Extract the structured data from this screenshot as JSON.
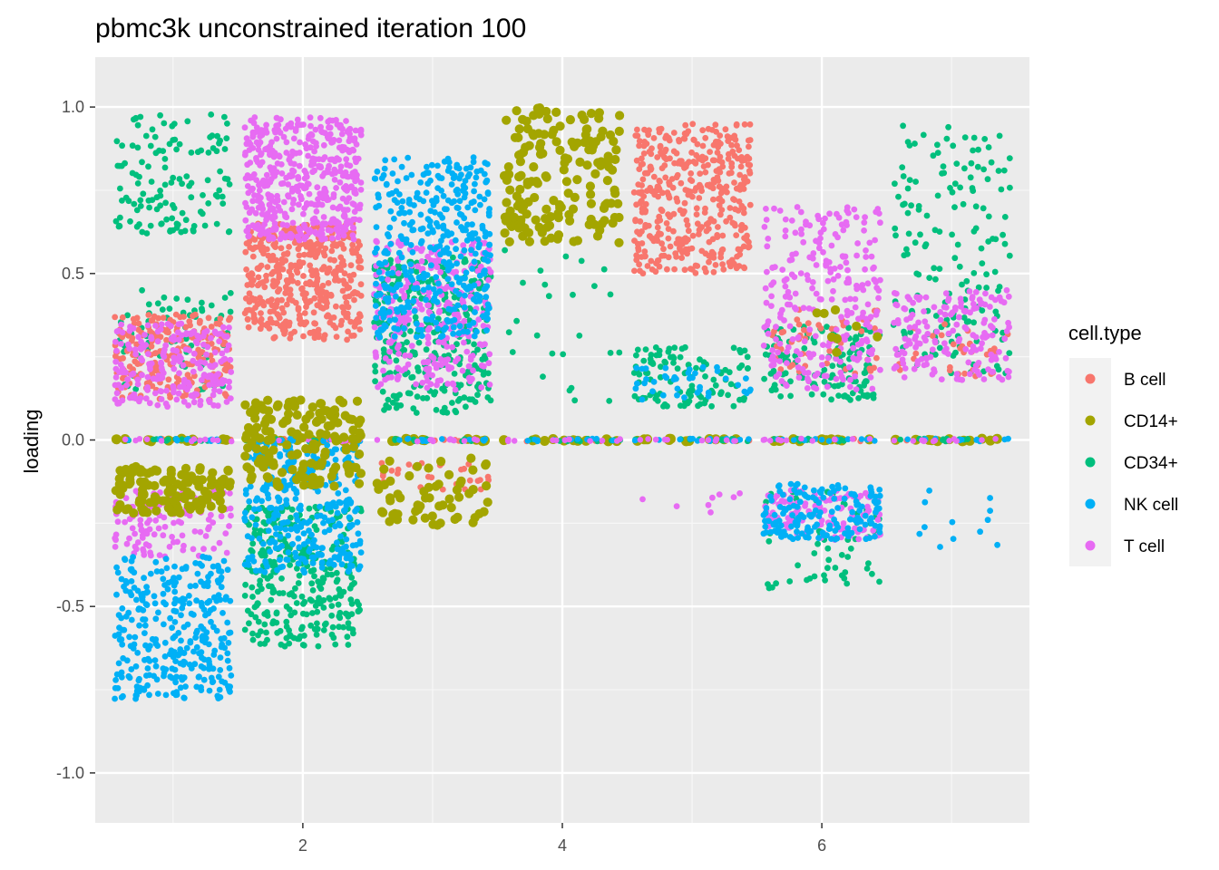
{
  "chart_data": {
    "type": "scatter",
    "title": "pbmc3k unconstrained iteration 100",
    "xlabel": "",
    "ylabel": "loading",
    "xlim": [
      0.4,
      7.6
    ],
    "ylim": [
      -1.15,
      1.15
    ],
    "x_ticks": [
      {
        "value": 2,
        "label": "2"
      },
      {
        "value": 4,
        "label": "4"
      },
      {
        "value": 6,
        "label": "6"
      }
    ],
    "x_minor_ticks": [
      1,
      3,
      5,
      7
    ],
    "y_ticks": [
      {
        "value": 1.0,
        "label": "1.0"
      },
      {
        "value": 0.5,
        "label": "0.5"
      },
      {
        "value": 0.0,
        "label": "0.0"
      },
      {
        "value": -0.5,
        "label": "-0.5"
      },
      {
        "value": -1.0,
        "label": "-1.0"
      }
    ],
    "y_minor_ticks": [
      0.75,
      0.25,
      -0.25,
      -0.75
    ],
    "grid": true,
    "jitter_width": 0.45,
    "legend": {
      "title": "cell.type",
      "position": "right",
      "entries": [
        {
          "name": "B cell",
          "color": "#F8766D"
        },
        {
          "name": "CD14+",
          "color": "#A3A500"
        },
        {
          "name": "CD34+",
          "color": "#00BF7D"
        },
        {
          "name": "NK cell",
          "color": "#00B0F6"
        },
        {
          "name": "T cell",
          "color": "#E76BF3"
        }
      ]
    },
    "series": [
      {
        "name": "CD34+",
        "clusters": [
          {
            "x": 1,
            "ymin": 0.62,
            "ymax": 0.98,
            "n": 130,
            "size": 1.0
          },
          {
            "x": 1,
            "ymin": 0.15,
            "ymax": 0.45,
            "n": 80,
            "size": 1.0
          },
          {
            "x": 2,
            "ymin": -0.62,
            "ymax": -0.2,
            "n": 320,
            "size": 1.0
          },
          {
            "x": 3,
            "ymin": 0.08,
            "ymax": 0.55,
            "n": 320,
            "size": 1.0
          },
          {
            "x": 4,
            "ymin": 0.1,
            "ymax": 0.6,
            "n": 25,
            "size": 1.0
          },
          {
            "x": 5,
            "ymin": 0.1,
            "ymax": 0.28,
            "n": 110,
            "size": 1.0
          },
          {
            "x": 6,
            "ymin": 0.12,
            "ymax": 0.35,
            "n": 130,
            "size": 1.0
          },
          {
            "x": 6,
            "ymin": -0.45,
            "ymax": -0.15,
            "n": 60,
            "size": 1.0
          },
          {
            "x": 7,
            "ymin": 0.2,
            "ymax": 0.95,
            "n": 160,
            "size": 1.0
          }
        ]
      },
      {
        "name": "B cell",
        "clusters": [
          {
            "x": 1,
            "ymin": 0.12,
            "ymax": 0.38,
            "n": 220,
            "size": 1.0
          },
          {
            "x": 2,
            "ymin": 0.3,
            "ymax": 0.65,
            "n": 420,
            "size": 1.0
          },
          {
            "x": 3,
            "ymin": -0.15,
            "ymax": -0.05,
            "n": 30,
            "size": 1.0
          },
          {
            "x": 5,
            "ymin": 0.5,
            "ymax": 0.95,
            "n": 420,
            "size": 1.0
          },
          {
            "x": 6,
            "ymin": 0.2,
            "ymax": 0.4,
            "n": 50,
            "size": 1.0
          },
          {
            "x": 7,
            "ymin": 0.18,
            "ymax": 0.35,
            "n": 30,
            "size": 1.0
          }
        ]
      },
      {
        "name": "T cell",
        "clusters": [
          {
            "x": 1,
            "ymin": 0.1,
            "ymax": 0.35,
            "n": 220,
            "size": 1.0
          },
          {
            "x": 1,
            "ymin": -0.35,
            "ymax": -0.15,
            "n": 120,
            "size": 1.0
          },
          {
            "x": 2,
            "ymin": 0.6,
            "ymax": 0.97,
            "n": 480,
            "size": 1.0
          },
          {
            "x": 3,
            "ymin": 0.15,
            "ymax": 0.6,
            "n": 300,
            "size": 1.0
          },
          {
            "x": 5,
            "ymin": -0.23,
            "ymax": -0.15,
            "n": 8,
            "size": 1.0
          },
          {
            "x": 6,
            "ymin": 0.15,
            "ymax": 0.7,
            "n": 260,
            "size": 1.0
          },
          {
            "x": 6,
            "ymin": -0.3,
            "ymax": -0.15,
            "n": 120,
            "size": 1.0
          },
          {
            "x": 7,
            "ymin": 0.18,
            "ymax": 0.45,
            "n": 170,
            "size": 1.0
          }
        ]
      },
      {
        "name": "NK cell",
        "clusters": [
          {
            "x": 1,
            "ymin": -0.78,
            "ymax": -0.35,
            "n": 320,
            "size": 1.0
          },
          {
            "x": 2,
            "ymin": -0.4,
            "ymax": 0.0,
            "n": 320,
            "size": 1.0
          },
          {
            "x": 3,
            "ymin": 0.3,
            "ymax": 0.85,
            "n": 380,
            "size": 1.0
          },
          {
            "x": 5,
            "ymin": 0.12,
            "ymax": 0.22,
            "n": 40,
            "size": 1.0
          },
          {
            "x": 6,
            "ymin": -0.3,
            "ymax": -0.13,
            "n": 160,
            "size": 1.0
          },
          {
            "x": 7,
            "ymin": -0.33,
            "ymax": -0.15,
            "n": 12,
            "size": 1.0
          }
        ]
      },
      {
        "name": "CD14+",
        "clusters": [
          {
            "x": 1,
            "ymin": -0.22,
            "ymax": -0.08,
            "n": 120,
            "size": 1.5
          },
          {
            "x": 2,
            "ymin": -0.15,
            "ymax": 0.12,
            "n": 160,
            "size": 1.5
          },
          {
            "x": 3,
            "ymin": -0.26,
            "ymax": -0.05,
            "n": 60,
            "size": 1.5
          },
          {
            "x": 4,
            "ymin": 0.58,
            "ymax": 1.0,
            "n": 170,
            "size": 1.5
          },
          {
            "x": 6,
            "ymin": 0.25,
            "ymax": 0.4,
            "n": 8,
            "size": 1.5
          }
        ]
      }
    ],
    "zero_line_points": {
      "y": 0.0,
      "n_per_group": 60
    }
  }
}
